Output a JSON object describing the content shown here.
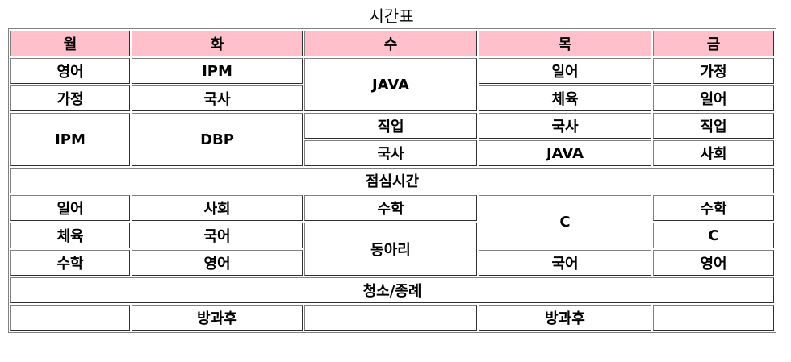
{
  "caption": "시간표",
  "days": [
    "월",
    "화",
    "수",
    "목",
    "금"
  ],
  "cells": {
    "r1_mon": "영어",
    "r1_tue": "IPM",
    "r12_wed": "JAVA",
    "r1_thu": "일어",
    "r1_fri": "가정",
    "r2_mon": "가정",
    "r2_tue": "국사",
    "r2_thu": "체육",
    "r2_fri": "일어",
    "r34_mon": "IPM",
    "r34_tue": "DBP",
    "r3_wed": "직업",
    "r3_thu": "국사",
    "r3_fri": "직업",
    "r4_wed": "국사",
    "r4_thu": "JAVA",
    "r4_fri": "사회",
    "lunch": "점심시간",
    "r5_mon": "일어",
    "r5_tue": "사회",
    "r5_wed": "수학",
    "r56_thu": "C",
    "r5_fri": "수학",
    "r6_mon": "체육",
    "r6_tue": "국어",
    "r67_wed": "동아리",
    "r6_fri": "C",
    "r7_mon": "수학",
    "r7_tue": "영어",
    "r7_thu": "국어",
    "r7_fri": "영어",
    "cleaning": "청소/종례",
    "r8_mon": "",
    "r8_tue": "방과후",
    "r8_wed": "",
    "r8_thu": "방과후",
    "r8_fri": ""
  },
  "colors": {
    "header_bg": "#ffc0cb",
    "border": "#808080"
  }
}
